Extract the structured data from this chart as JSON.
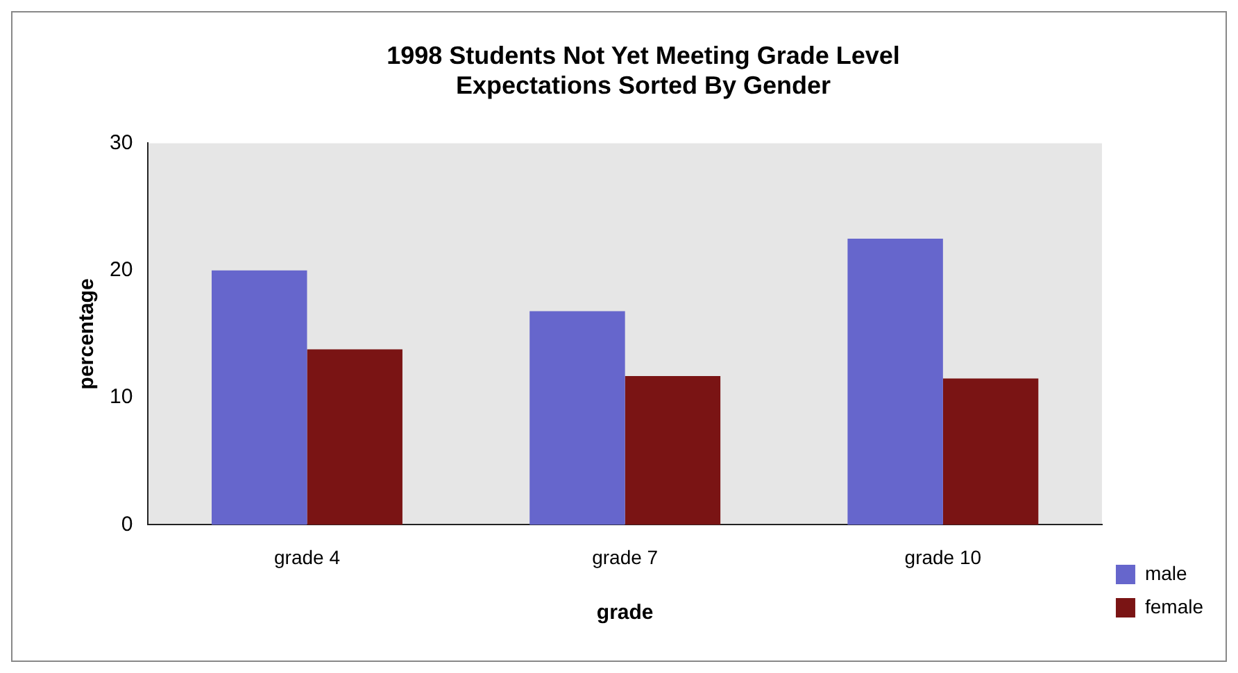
{
  "chart_data": {
    "type": "bar",
    "title": [
      "1998 Students Not Yet Meeting Grade Level",
      "Expectations Sorted By Gender"
    ],
    "xlabel": "grade",
    "ylabel": "percentage",
    "categories": [
      "grade 4",
      "grade 7",
      "grade 10"
    ],
    "series": [
      {
        "name": "male",
        "color": "#6666cc",
        "values": [
          20,
          16.8,
          22.5
        ]
      },
      {
        "name": "female",
        "color": "#7a1414",
        "values": [
          13.8,
          11.7,
          11.5
        ]
      }
    ],
    "ylim": [
      0,
      30
    ],
    "yticks": [
      0,
      10,
      20,
      30
    ],
    "grid": false,
    "legend": "bottom right"
  }
}
